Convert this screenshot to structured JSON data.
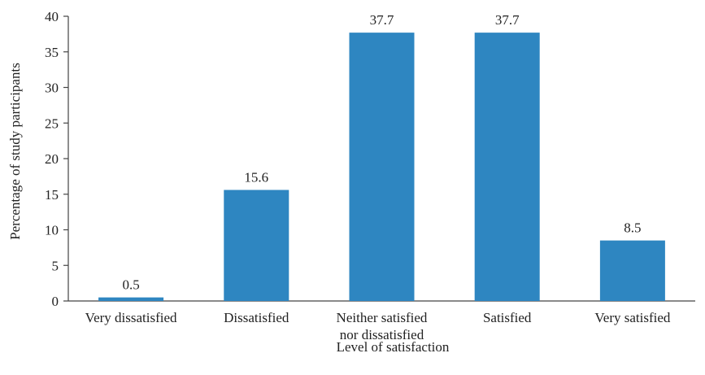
{
  "chart_data": {
    "type": "bar",
    "title": "",
    "xlabel": "Level of satisfaction",
    "ylabel": "Percentage of study participants",
    "categories": [
      [
        "Very dissatisfied"
      ],
      [
        "Dissatisfied"
      ],
      [
        "Neither satisfied",
        "nor dissatisfied"
      ],
      [
        "Satisfied"
      ],
      [
        "Very satisfied"
      ]
    ],
    "values": [
      0.5,
      15.6,
      37.7,
      37.7,
      8.5
    ],
    "data_labels": [
      "0.5",
      "15.6",
      "37.7",
      "37.7",
      "8.5"
    ],
    "ylim": [
      0,
      40
    ],
    "yticks": [
      0,
      5,
      10,
      15,
      20,
      25,
      30,
      35,
      40
    ],
    "grid": false,
    "legend": "none",
    "bar_color": "#2e86c1",
    "axis_color": "#444444"
  }
}
